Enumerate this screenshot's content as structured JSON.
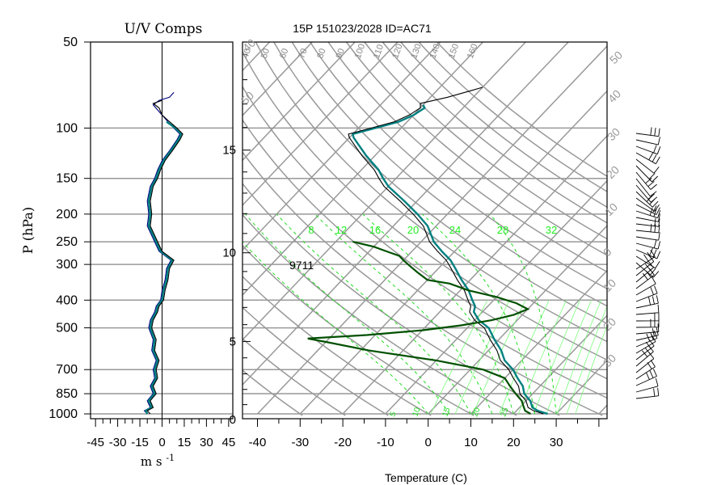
{
  "header": {
    "left_title": "U/V Comps",
    "right_title": "15P 151023/2028 ID=AC71",
    "station_label": "9711"
  },
  "chart_data": [
    {
      "type": "line",
      "title": "U/V Comps",
      "xlabel": "m s",
      "xlabel_exponent": "-1",
      "ylabel": "P (hPa)",
      "xlim": [
        -50,
        50
      ],
      "ylim": [
        1000,
        50
      ],
      "y_scale": "log",
      "x_ticks": [
        "-45",
        "-30",
        "-15",
        "0",
        "15",
        "30",
        "45"
      ],
      "y_ticks": [
        "50",
        "100",
        "150",
        "200",
        "250",
        "300",
        "400",
        "500",
        "700",
        "850",
        "1000"
      ],
      "grid": true,
      "series": [
        {
          "color": "#000080",
          "points": [
            [
              -10,
              1000
            ],
            [
              -12,
              975
            ],
            [
              -8,
              950
            ],
            [
              -10,
              900
            ],
            [
              -6,
              850
            ],
            [
              -8,
              800
            ],
            [
              -5,
              750
            ],
            [
              -6,
              700
            ],
            [
              -4,
              650
            ],
            [
              -7,
              600
            ],
            [
              -6,
              550
            ],
            [
              -9,
              500
            ],
            [
              -8,
              470
            ],
            [
              -5,
              440
            ],
            [
              -4,
              420
            ],
            [
              -1,
              400
            ],
            [
              0,
              370
            ],
            [
              2,
              340
            ],
            [
              3,
              310
            ],
            [
              6,
              290
            ],
            [
              -2,
              270
            ],
            [
              -5,
              250
            ],
            [
              -10,
              220
            ],
            [
              -9,
              200
            ],
            [
              -10,
              180
            ],
            [
              -8,
              160
            ],
            [
              -5,
              150
            ],
            [
              -3,
              140
            ],
            [
              0,
              130
            ],
            [
              5,
              120
            ],
            [
              10,
              110
            ],
            [
              12,
              105
            ],
            [
              8,
              100
            ],
            [
              4,
              95
            ],
            [
              0,
              90
            ],
            [
              -6,
              83
            ],
            [
              -2,
              80
            ],
            [
              5,
              78
            ],
            [
              8,
              75
            ]
          ]
        },
        {
          "color": "#008080",
          "points": [
            [
              -10,
              1000
            ],
            [
              -11,
              975
            ],
            [
              -7,
              950
            ],
            [
              -9,
              900
            ],
            [
              -5,
              850
            ],
            [
              -7,
              800
            ],
            [
              -4,
              750
            ],
            [
              -5,
              700
            ],
            [
              -3,
              650
            ],
            [
              -6,
              600
            ],
            [
              -5,
              550
            ],
            [
              -8,
              500
            ],
            [
              -7,
              470
            ],
            [
              -4,
              440
            ],
            [
              -3,
              420
            ],
            [
              0,
              400
            ],
            [
              1,
              370
            ],
            [
              3,
              340
            ],
            [
              4,
              310
            ],
            [
              7,
              290
            ],
            [
              -1,
              270
            ],
            [
              -4,
              250
            ],
            [
              -9,
              220
            ],
            [
              -8,
              200
            ],
            [
              -9,
              180
            ],
            [
              -7,
              160
            ],
            [
              -4,
              150
            ],
            [
              -2,
              140
            ],
            [
              1,
              130
            ],
            [
              6,
              120
            ],
            [
              11,
              110
            ],
            [
              13,
              105
            ],
            [
              9,
              100
            ],
            [
              3,
              95
            ]
          ]
        },
        {
          "color": "#000000",
          "points": [
            [
              -8,
              1000
            ],
            [
              -10,
              975
            ],
            [
              -6,
              950
            ],
            [
              -8,
              900
            ],
            [
              -4,
              850
            ],
            [
              -6,
              800
            ],
            [
              -3,
              750
            ],
            [
              -4,
              700
            ],
            [
              -2,
              650
            ],
            [
              -5,
              600
            ],
            [
              -4,
              550
            ],
            [
              -7,
              500
            ],
            [
              -6,
              470
            ],
            [
              -3,
              440
            ],
            [
              -2,
              420
            ],
            [
              1,
              400
            ],
            [
              2,
              370
            ],
            [
              4,
              340
            ],
            [
              5,
              310
            ],
            [
              8,
              290
            ],
            [
              0,
              270
            ],
            [
              -3,
              250
            ],
            [
              -8,
              220
            ],
            [
              -7,
              200
            ],
            [
              -8,
              180
            ],
            [
              -6,
              160
            ],
            [
              -3,
              150
            ],
            [
              -1,
              140
            ],
            [
              2,
              130
            ],
            [
              7,
              120
            ],
            [
              12,
              110
            ],
            [
              14,
              105
            ],
            [
              10,
              100
            ],
            [
              5,
              95
            ],
            [
              0,
              90
            ],
            [
              -2,
              85
            ],
            [
              -6,
              82
            ],
            [
              0,
              80
            ]
          ]
        }
      ]
    },
    {
      "type": "line",
      "title": "15P 151023/2028 ID=AC71",
      "xlabel": "Temperature (C)",
      "ylabel": "",
      "xlim": [
        -45,
        45
      ],
      "ylim": [
        1000,
        50
      ],
      "skew": true,
      "x_ticks": [
        "-40",
        "-30",
        "-20",
        "-10",
        "0",
        "10",
        "20",
        "30"
      ],
      "height_km_labels": [
        "0",
        "5",
        "10",
        "15"
      ],
      "isobar_levels": [
        100,
        150,
        200,
        250,
        300,
        400,
        500,
        700,
        850,
        1000
      ],
      "dry_adiabat_labels": [
        "40",
        "50",
        "60",
        "70",
        "80",
        "90",
        "100",
        "110",
        "120",
        "130",
        "140",
        "150",
        "160"
      ],
      "mixing_ratio_labels": [
        "8",
        "12",
        "16",
        "20",
        "24",
        "28",
        "32"
      ],
      "moist_adiabat_labels": [
        "5",
        "10",
        "15",
        "20",
        "25"
      ],
      "isotherm_labels": [
        "50",
        "40",
        "30",
        "20",
        "10",
        "0",
        "10",
        "20",
        "30",
        "40",
        "50"
      ],
      "series": [
        {
          "color": "#008080",
          "points": [
            [
              28,
              1000
            ],
            [
              25,
              975
            ],
            [
              23,
              950
            ],
            [
              21,
              900
            ],
            [
              18,
              850
            ],
            [
              16,
              800
            ],
            [
              13,
              750
            ],
            [
              10,
              700
            ],
            [
              6,
              650
            ],
            [
              3,
              600
            ],
            [
              -1,
              550
            ],
            [
              -5,
              500
            ],
            [
              -9,
              470
            ],
            [
              -12,
              440
            ],
            [
              -13,
              420
            ],
            [
              -15,
              400
            ],
            [
              -18,
              370
            ],
            [
              -22,
              340
            ],
            [
              -26,
              310
            ],
            [
              -29,
              290
            ],
            [
              -33,
              270
            ],
            [
              -37,
              250
            ],
            [
              -42,
              220
            ],
            [
              -47,
              200
            ],
            [
              -53,
              180
            ],
            [
              -60,
              160
            ],
            [
              -63,
              150
            ],
            [
              -66,
              140
            ],
            [
              -72,
              125
            ],
            [
              -76,
              115
            ],
            [
              -79,
              108
            ],
            [
              -80,
              105
            ],
            [
              -76,
              100
            ],
            [
              -72,
              95
            ],
            [
              -70,
              90
            ],
            [
              -69,
              85
            ],
            [
              -70,
              83
            ]
          ]
        },
        {
          "color": "#000000",
          "points": [
            [
              27,
              1000
            ],
            [
              24,
              975
            ],
            [
              22,
              950
            ],
            [
              20,
              900
            ],
            [
              17,
              850
            ],
            [
              15,
              800
            ],
            [
              12,
              750
            ],
            [
              9,
              700
            ],
            [
              5,
              650
            ],
            [
              2,
              600
            ],
            [
              -2,
              550
            ],
            [
              -6,
              500
            ],
            [
              -10,
              470
            ],
            [
              -13,
              440
            ],
            [
              -14,
              420
            ],
            [
              -16,
              400
            ],
            [
              -19,
              370
            ],
            [
              -23,
              340
            ],
            [
              -27,
              310
            ],
            [
              -30,
              290
            ],
            [
              -34,
              270
            ],
            [
              -38,
              250
            ],
            [
              -43,
              220
            ],
            [
              -48,
              200
            ],
            [
              -54,
              180
            ],
            [
              -61,
              160
            ],
            [
              -64,
              150
            ],
            [
              -67,
              140
            ],
            [
              -73,
              125
            ],
            [
              -77,
              115
            ],
            [
              -80,
              108
            ],
            [
              -81,
              105
            ],
            [
              -77,
              100
            ],
            [
              -73,
              95
            ],
            [
              -71,
              90
            ],
            [
              -70,
              85
            ],
            [
              -71,
              82
            ],
            [
              -66,
              78
            ],
            [
              -62,
              74
            ],
            [
              -60,
              72
            ]
          ]
        },
        {
          "color": "#005000",
          "points": [
            [
              24,
              1000
            ],
            [
              22,
              975
            ],
            [
              21,
              950
            ],
            [
              19,
              900
            ],
            [
              16,
              850
            ],
            [
              13,
              800
            ],
            [
              10,
              750
            ],
            [
              3,
              700
            ],
            [
              -10,
              650
            ],
            [
              -28,
              600
            ],
            [
              -40,
              560
            ],
            [
              -45,
              545
            ],
            [
              -32,
              530
            ],
            [
              -20,
              510
            ],
            [
              -12,
              490
            ],
            [
              -6,
              470
            ],
            [
              -2,
              450
            ],
            [
              0,
              430
            ],
            [
              -4,
              410
            ],
            [
              -10,
              390
            ],
            [
              -18,
              370
            ],
            [
              -24,
              350
            ],
            [
              -30,
              340
            ],
            [
              -34,
              320
            ],
            [
              -38,
              300
            ],
            [
              -40,
              290
            ],
            [
              -42,
              280
            ],
            [
              -46,
              270
            ],
            [
              -50,
              260
            ],
            [
              -56,
              250
            ]
          ]
        }
      ]
    }
  ]
}
